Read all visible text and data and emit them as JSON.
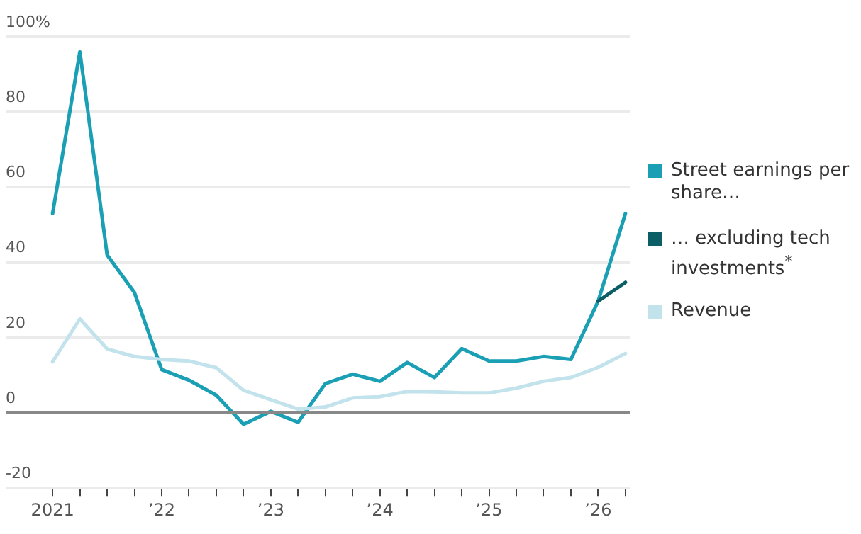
{
  "chart_data": {
    "type": "line",
    "x": [
      2021,
      2021.25,
      2021.5,
      2021.75,
      2022,
      2022.25,
      2022.5,
      2022.75,
      2023,
      2023.25,
      2023.5,
      2023.75,
      2024,
      2024.25,
      2024.5,
      2024.75,
      2025,
      2025.25,
      2025.5,
      2025.75,
      2026,
      2026.25
    ],
    "series": [
      {
        "name": "Street earnings per share…",
        "color": "#1a9fb5",
        "values": [
          53,
          96,
          42,
          32,
          11.5,
          8.7,
          4.7,
          -3,
          0.4,
          -2.5,
          7.8,
          10.3,
          8.4,
          13.4,
          9.4,
          17.1,
          13.8,
          13.8,
          15,
          14.2,
          29.7,
          53
        ]
      },
      {
        "name": "… excluding tech investments$^{*}$",
        "color": "#0b5e66",
        "values": [
          null,
          null,
          null,
          null,
          null,
          null,
          null,
          null,
          null,
          null,
          null,
          null,
          null,
          null,
          null,
          null,
          null,
          null,
          null,
          null,
          29.7,
          34.7
        ]
      },
      {
        "name": "Revenue",
        "color": "#c2e2ec",
        "values": [
          13.6,
          25,
          17,
          15,
          14.2,
          13.8,
          12,
          6,
          3.5,
          1,
          1.6,
          4,
          4.3,
          5.7,
          5.6,
          5.3,
          5.3,
          6.6,
          8.4,
          9.4,
          12.1,
          15.8
        ]
      }
    ],
    "xlim": [
      2020.57,
      2026.29
    ],
    "xticks": [
      {
        "value": 2021,
        "label": "2021"
      },
      {
        "value": 2021.25,
        "label": null
      },
      {
        "value": 2021.5,
        "label": null
      },
      {
        "value": 2021.75,
        "label": null
      },
      {
        "value": 2022,
        "label": "’22"
      },
      {
        "value": 2022.25,
        "label": null
      },
      {
        "value": 2022.5,
        "label": null
      },
      {
        "value": 2022.75,
        "label": null
      },
      {
        "value": 2023,
        "label": "’23"
      },
      {
        "value": 2023.25,
        "label": null
      },
      {
        "value": 2023.5,
        "label": null
      },
      {
        "value": 2023.75,
        "label": null
      },
      {
        "value": 2024,
        "label": "’24"
      },
      {
        "value": 2024.25,
        "label": null
      },
      {
        "value": 2024.5,
        "label": null
      },
      {
        "value": 2024.75,
        "label": null
      },
      {
        "value": 2025,
        "label": "’25"
      },
      {
        "value": 2025.25,
        "label": null
      },
      {
        "value": 2025.5,
        "label": null
      },
      {
        "value": 2025.75,
        "label": null
      },
      {
        "value": 2026,
        "label": "’26"
      },
      {
        "value": 2026.25,
        "label": null
      }
    ],
    "ylim": [
      -20,
      100
    ],
    "yticks": [
      -20,
      0,
      20,
      40,
      60,
      80,
      {
        "value": 100,
        "label": "100%"
      }
    ],
    "ref_lines": [
      {
        "axis": "y",
        "value": 0,
        "label": null,
        "color": "#888888"
      }
    ],
    "grid": "y",
    "legend": "right",
    "marker": "none",
    "line_style": "solid"
  }
}
